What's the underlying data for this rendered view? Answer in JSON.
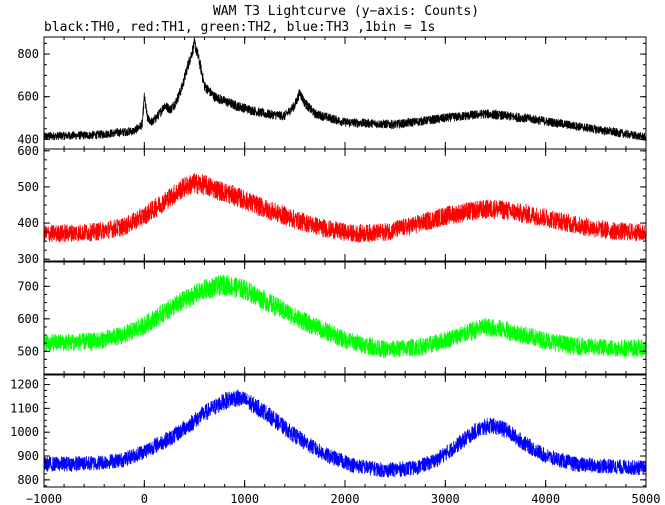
{
  "chart_data": {
    "type": "line",
    "title": "WAM T3 Lightcurve (y−axis: Counts)",
    "subtitle": "black:TH0, red:TH1, green:TH2, blue:TH3 ,1bin = 1s",
    "xlabel": "",
    "ylabel": "",
    "xlim": [
      -1000,
      5000
    ],
    "x_ticks": [
      -1000,
      0,
      1000,
      2000,
      3000,
      4000,
      5000
    ],
    "x_tick_labels": [
      "−1000",
      "0",
      "1000",
      "2000",
      "3000",
      "4000",
      "5000"
    ],
    "grid": false,
    "panels": [
      {
        "name": "TH0",
        "color": "#000000",
        "ylim": [
          355,
          880
        ],
        "y_ticks": [
          400,
          600,
          800
        ],
        "y_tick_labels": [
          "400",
          "600",
          "800"
        ],
        "noise": 20,
        "x": [
          -1000,
          -500,
          -100,
          -20,
          0,
          30,
          80,
          150,
          200,
          260,
          320,
          380,
          430,
          470,
          500,
          530,
          560,
          600,
          700,
          900,
          1200,
          1400,
          1500,
          1550,
          1600,
          1700,
          2000,
          2500,
          3000,
          3400,
          3800,
          4200,
          4600,
          5000
        ],
        "values": [
          415,
          420,
          440,
          470,
          600,
          500,
          480,
          520,
          560,
          540,
          580,
          650,
          740,
          800,
          850,
          800,
          740,
          650,
          600,
          560,
          520,
          510,
          560,
          620,
          570,
          520,
          480,
          470,
          500,
          520,
          500,
          470,
          440,
          410
        ]
      },
      {
        "name": "TH1",
        "color": "#ff0000",
        "ylim": [
          295,
          605
        ],
        "y_ticks": [
          300,
          400,
          500,
          600
        ],
        "y_tick_labels": [
          "300",
          "400",
          "500",
          "600"
        ],
        "noise": 25,
        "x": [
          -1000,
          -500,
          -200,
          0,
          200,
          400,
          500,
          600,
          700,
          900,
          1200,
          1500,
          1800,
          2100,
          2400,
          2700,
          3000,
          3300,
          3500,
          3700,
          4000,
          4300,
          4600,
          5000
        ],
        "values": [
          370,
          375,
          390,
          420,
          460,
          500,
          510,
          505,
          495,
          475,
          440,
          410,
          385,
          370,
          375,
          395,
          420,
          435,
          440,
          430,
          415,
          395,
          380,
          372
        ]
      },
      {
        "name": "TH2",
        "color": "#00ff00",
        "ylim": [
          430,
          775
        ],
        "y_ticks": [
          500,
          600,
          700
        ],
        "y_tick_labels": [
          "500",
          "600",
          "700"
        ],
        "noise": 28,
        "x": [
          -1000,
          -500,
          -200,
          0,
          300,
          600,
          800,
          1000,
          1300,
          1600,
          2000,
          2400,
          2800,
          3100,
          3400,
          3600,
          3900,
          4300,
          4700,
          5000
        ],
        "values": [
          525,
          530,
          550,
          580,
          640,
          690,
          705,
          690,
          640,
          590,
          535,
          505,
          515,
          545,
          575,
          565,
          540,
          515,
          510,
          510
        ]
      },
      {
        "name": "TH3",
        "color": "#0000ff",
        "ylim": [
          770,
          1240
        ],
        "y_ticks": [
          800,
          900,
          1000,
          1100,
          1200
        ],
        "y_tick_labels": [
          "800",
          "900",
          "1000",
          "1100",
          "1200"
        ],
        "noise": 32,
        "x": [
          -1000,
          -500,
          -200,
          0,
          300,
          600,
          800,
          900,
          1000,
          1200,
          1500,
          1800,
          2100,
          2400,
          2700,
          2900,
          3100,
          3300,
          3450,
          3600,
          3800,
          4000,
          4300,
          4700,
          5000
        ],
        "values": [
          865,
          870,
          885,
          920,
          985,
          1080,
          1130,
          1145,
          1135,
          1085,
          985,
          905,
          860,
          840,
          850,
          880,
          940,
          1005,
          1030,
          1010,
          950,
          900,
          865,
          855,
          850
        ]
      }
    ]
  }
}
